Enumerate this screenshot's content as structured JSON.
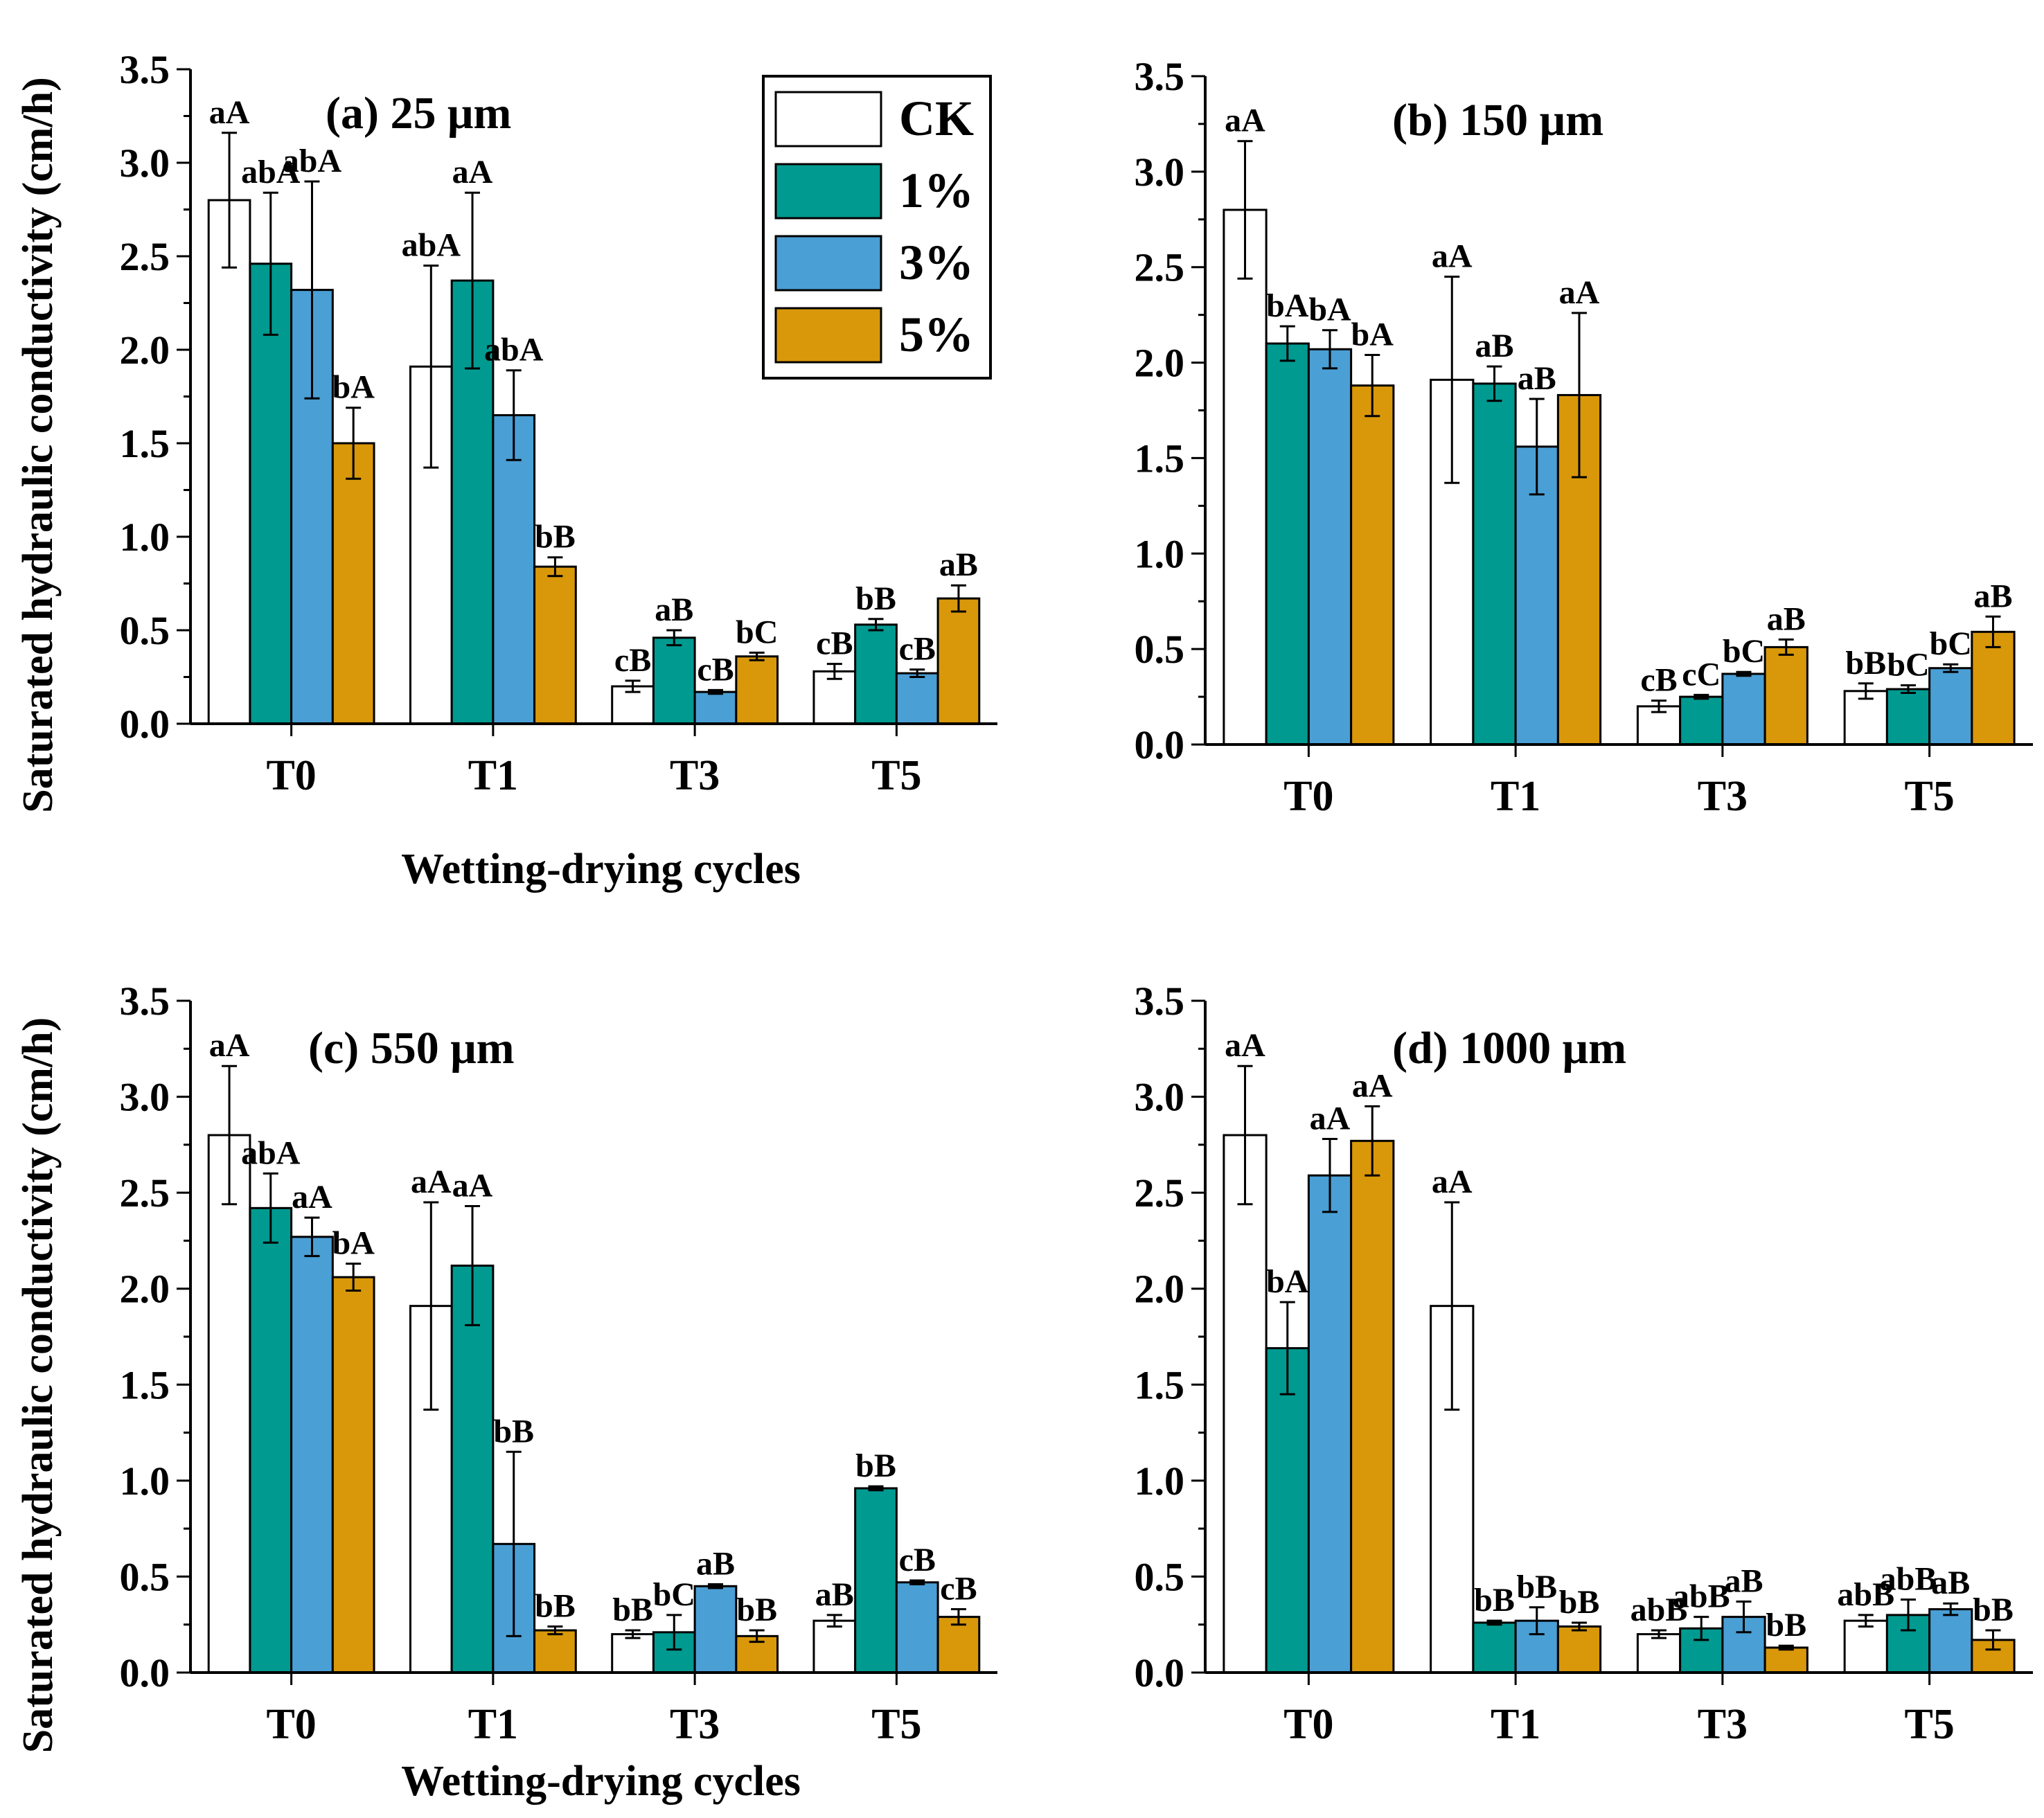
{
  "figure": {
    "xlabel": "Wetting-drying cycles",
    "ylabel": "Saturated hydraulic conductivity (cm/h)"
  },
  "legend": {
    "items": [
      {
        "label": "CK",
        "color": "#ffffff"
      },
      {
        "label": "1%",
        "color": "#009a91"
      },
      {
        "label": "3%",
        "color": "#4a9fd5"
      },
      {
        "label": "5%",
        "color": "#d9980a"
      }
    ]
  },
  "chart_data": [
    {
      "type": "bar",
      "title": "(a) 25 μm",
      "xlabel": "Wetting-drying cycles",
      "ylabel": "Saturated hydraulic conductivity (cm/h)",
      "ylim": [
        0,
        3.5
      ],
      "yticks": [
        "0.0",
        "0.5",
        "1.0",
        "1.5",
        "2.0",
        "2.5",
        "3.0",
        "3.5"
      ],
      "categories": [
        "T0",
        "T1",
        "T3",
        "T5"
      ],
      "series": [
        {
          "name": "CK",
          "values": [
            2.8,
            1.91,
            0.2,
            0.28
          ],
          "errors": [
            0.36,
            0.54,
            0.03,
            0.04
          ],
          "labels": [
            "aA",
            "abA",
            "cB",
            "cB"
          ]
        },
        {
          "name": "1%",
          "values": [
            2.46,
            2.37,
            0.46,
            0.53
          ],
          "errors": [
            0.38,
            0.47,
            0.04,
            0.03
          ],
          "labels": [
            "abA",
            "aA",
            "aB",
            "bB"
          ]
        },
        {
          "name": "3%",
          "values": [
            2.32,
            1.65,
            0.17,
            0.27
          ],
          "errors": [
            0.58,
            0.24,
            0.01,
            0.02
          ],
          "labels": [
            "abA",
            "abA",
            "cB",
            "cB"
          ]
        },
        {
          "name": "5%",
          "values": [
            1.5,
            0.84,
            0.36,
            0.67
          ],
          "errors": [
            0.19,
            0.05,
            0.02,
            0.07
          ],
          "labels": [
            "bA",
            "bB",
            "bC",
            "aB"
          ]
        }
      ]
    },
    {
      "type": "bar",
      "title": "(b) 150 μm",
      "xlabel": "",
      "ylabel": "",
      "ylim": [
        0,
        3.5
      ],
      "yticks": [
        "0.0",
        "0.5",
        "1.0",
        "1.5",
        "2.0",
        "2.5",
        "3.0",
        "3.5"
      ],
      "categories": [
        "T0",
        "T1",
        "T3",
        "T5"
      ],
      "series": [
        {
          "name": "CK",
          "values": [
            2.8,
            1.91,
            0.2,
            0.28
          ],
          "errors": [
            0.36,
            0.54,
            0.03,
            0.04
          ],
          "labels": [
            "aA",
            "aA",
            "cB",
            "bB"
          ]
        },
        {
          "name": "1%",
          "values": [
            2.1,
            1.89,
            0.25,
            0.29
          ],
          "errors": [
            0.09,
            0.09,
            0.01,
            0.02
          ],
          "labels": [
            "bA",
            "aB",
            "cC",
            "bC"
          ]
        },
        {
          "name": "3%",
          "values": [
            2.07,
            1.56,
            0.37,
            0.4
          ],
          "errors": [
            0.1,
            0.25,
            0.01,
            0.02
          ],
          "labels": [
            "bA",
            "aB",
            "bC",
            "bC"
          ]
        },
        {
          "name": "5%",
          "values": [
            1.88,
            1.83,
            0.51,
            0.59
          ],
          "errors": [
            0.16,
            0.43,
            0.04,
            0.08
          ],
          "labels": [
            "bA",
            "aA",
            "aB",
            "aB"
          ]
        }
      ]
    },
    {
      "type": "bar",
      "title": "(c) 550 μm",
      "xlabel": "Wetting-drying cycles",
      "ylabel": "Saturated hydraulic conductivity (cm/h)",
      "ylim": [
        0,
        3.5
      ],
      "yticks": [
        "0.0",
        "0.5",
        "1.0",
        "1.5",
        "2.0",
        "2.5",
        "3.0",
        "3.5"
      ],
      "categories": [
        "T0",
        "T1",
        "T3",
        "T5"
      ],
      "series": [
        {
          "name": "CK",
          "values": [
            2.8,
            1.91,
            0.2,
            0.27
          ],
          "errors": [
            0.36,
            0.54,
            0.02,
            0.03
          ],
          "labels": [
            "aA",
            "aA",
            "bB",
            "aB"
          ]
        },
        {
          "name": "1%",
          "values": [
            2.42,
            2.12,
            0.21,
            0.96
          ],
          "errors": [
            0.18,
            0.31,
            0.09,
            0.01
          ],
          "labels": [
            "abA",
            "aA",
            "bC",
            "bB"
          ]
        },
        {
          "name": "3%",
          "values": [
            2.27,
            0.67,
            0.45,
            0.47
          ],
          "errors": [
            0.1,
            0.48,
            0.01,
            0.01
          ],
          "labels": [
            "aA",
            "bB",
            "aB",
            "cB"
          ]
        },
        {
          "name": "5%",
          "values": [
            2.06,
            0.22,
            0.19,
            0.29
          ],
          "errors": [
            0.07,
            0.02,
            0.03,
            0.04
          ],
          "labels": [
            "bA",
            "bB",
            "bB",
            "cB"
          ]
        }
      ]
    },
    {
      "type": "bar",
      "title": "(d) 1000 μm",
      "xlabel": "",
      "ylabel": "",
      "ylim": [
        0,
        3.5
      ],
      "yticks": [
        "0.0",
        "0.5",
        "1.0",
        "1.5",
        "2.0",
        "2.5",
        "3.0",
        "3.5"
      ],
      "categories": [
        "T0",
        "T1",
        "T3",
        "T5"
      ],
      "series": [
        {
          "name": "CK",
          "values": [
            2.8,
            1.91,
            0.2,
            0.27
          ],
          "errors": [
            0.36,
            0.54,
            0.02,
            0.03
          ],
          "labels": [
            "aA",
            "aA",
            "abB",
            "abB"
          ]
        },
        {
          "name": "1%",
          "values": [
            1.69,
            0.26,
            0.23,
            0.3
          ],
          "errors": [
            0.24,
            0.01,
            0.06,
            0.08
          ],
          "labels": [
            "bA",
            "bB",
            "abB",
            "abB"
          ]
        },
        {
          "name": "3%",
          "values": [
            2.59,
            0.27,
            0.29,
            0.33
          ],
          "errors": [
            0.19,
            0.07,
            0.08,
            0.03
          ],
          "labels": [
            "aA",
            "bB",
            "aB",
            "aB"
          ]
        },
        {
          "name": "5%",
          "values": [
            2.77,
            0.24,
            0.13,
            0.17
          ],
          "errors": [
            0.18,
            0.02,
            0.01,
            0.05
          ],
          "labels": [
            "aA",
            "bB",
            "bB",
            "bB"
          ]
        }
      ]
    }
  ]
}
